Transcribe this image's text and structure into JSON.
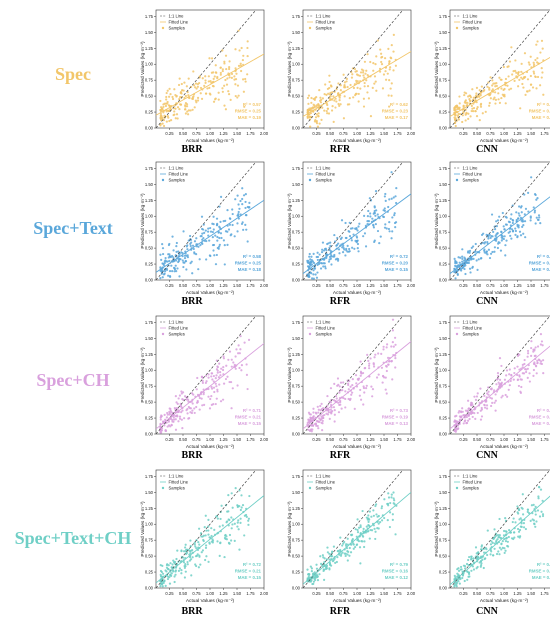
{
  "figure": {
    "rows": [
      {
        "label": "Spec",
        "color": "#f2c66a"
      },
      {
        "label": "Spec+Text",
        "color": "#5aa7da"
      },
      {
        "label": "Spec+CH",
        "color": "#d9a0dd"
      },
      {
        "label": "Spec+Text+CH",
        "color": "#6fcfc6"
      }
    ],
    "models": [
      "BRR",
      "RFR",
      "CNN"
    ]
  },
  "chart_data": [
    {
      "type": "scatter",
      "row": 0,
      "col": 0,
      "model": "BRR",
      "feature_set": "Spec",
      "xlabel": "Actual Values (kg·m⁻²)",
      "ylabel": "Predicted Values (kg·m⁻²)",
      "xlim": [
        0,
        2.0
      ],
      "ylim": [
        0,
        1.85
      ],
      "xticks": [
        "0.25",
        "0.50",
        "0.75",
        "1.00",
        "1.25",
        "1.50",
        "1.75",
        "2.00"
      ],
      "yticks": [
        "0.00",
        "0.25",
        "0.50",
        "0.75",
        "1.00",
        "1.25",
        "1.50",
        "1.75"
      ],
      "legend": [
        "1:1 Line",
        "Fitted Line",
        "Samples"
      ],
      "fit_line": [
        [
          0,
          0.2
        ],
        [
          2.0,
          1.16
        ]
      ],
      "metrics": [
        "R² = 0.57",
        "RMSE = 0.25",
        "MAE = 0.19"
      ],
      "n_points": 240
    },
    {
      "type": "scatter",
      "row": 0,
      "col": 1,
      "model": "RFR",
      "feature_set": "Spec",
      "xlabel": "Actual Values (kg·m⁻²)",
      "ylabel": "Predicted Values (kg·m⁻²)",
      "xlim": [
        0,
        2.0
      ],
      "ylim": [
        0,
        1.85
      ],
      "xticks": [
        "0.25",
        "0.50",
        "0.75",
        "1.00",
        "1.25",
        "1.50",
        "1.75",
        "2.00"
      ],
      "yticks": [
        "0.00",
        "0.25",
        "0.50",
        "0.75",
        "1.00",
        "1.25",
        "1.50",
        "1.75"
      ],
      "legend": [
        "1:1 Line",
        "Fitted Line",
        "Samples"
      ],
      "fit_line": [
        [
          0,
          0.18
        ],
        [
          2.0,
          1.2
        ]
      ],
      "metrics": [
        "R² = 0.62",
        "RMSE = 0.23",
        "MAE = 0.17"
      ],
      "n_points": 240
    },
    {
      "type": "scatter",
      "row": 0,
      "col": 2,
      "model": "CNN",
      "feature_set": "Spec",
      "xlabel": "Actual Values (kg·m⁻²)",
      "ylabel": "Predicted Values (kg·m⁻²)",
      "xlim": [
        0,
        2.0
      ],
      "ylim": [
        0,
        1.85
      ],
      "xticks": [
        "0.25",
        "0.50",
        "0.75",
        "1.00",
        "1.25",
        "1.50",
        "1.75",
        "2.00"
      ],
      "yticks": [
        "0.00",
        "0.25",
        "0.50",
        "0.75",
        "1.00",
        "1.25",
        "1.50",
        "1.75"
      ],
      "legend": [
        "1:1 Line",
        "Fitted Line",
        "Samples"
      ],
      "fit_line": [
        [
          0,
          0.18
        ],
        [
          2.0,
          1.18
        ]
      ],
      "metrics": [
        "R² = 0.57",
        "RMSE = 0.22",
        "MAE = 0.15"
      ],
      "n_points": 240
    },
    {
      "type": "scatter",
      "row": 1,
      "col": 0,
      "model": "BRR",
      "feature_set": "Spec+Text",
      "xlabel": "Actual Values (kg·m⁻²)",
      "ylabel": "Predicted Values (kg·m⁻²)",
      "xlim": [
        0,
        2.0
      ],
      "ylim": [
        0,
        1.85
      ],
      "xticks": [
        "0.25",
        "0.50",
        "0.75",
        "1.00",
        "1.25",
        "1.50",
        "1.75",
        "2.00"
      ],
      "yticks": [
        "0.00",
        "0.25",
        "0.50",
        "0.75",
        "1.00",
        "1.25",
        "1.50",
        "1.75"
      ],
      "legend": [
        "1:1 Line",
        "Fitted Line",
        "Samples"
      ],
      "fit_line": [
        [
          0,
          0.12
        ],
        [
          2.0,
          1.25
        ]
      ],
      "metrics": [
        "R² = 0.58",
        "RMSE = 0.25",
        "MAE = 0.18"
      ],
      "n_points": 240
    },
    {
      "type": "scatter",
      "row": 1,
      "col": 1,
      "model": "RFR",
      "feature_set": "Spec+Text",
      "xlabel": "Actual Values (kg·m⁻²)",
      "ylabel": "Predicted Values (kg·m⁻²)",
      "xlim": [
        0,
        2.0
      ],
      "ylim": [
        0,
        1.85
      ],
      "xticks": [
        "0.25",
        "0.50",
        "0.75",
        "1.00",
        "1.25",
        "1.50",
        "1.75",
        "2.00"
      ],
      "yticks": [
        "0.00",
        "0.25",
        "0.50",
        "0.75",
        "1.00",
        "1.25",
        "1.50",
        "1.75"
      ],
      "legend": [
        "1:1 Line",
        "Fitted Line",
        "Samples"
      ],
      "fit_line": [
        [
          0,
          0.1
        ],
        [
          2.0,
          1.35
        ]
      ],
      "metrics": [
        "R² = 0.72",
        "RMSE = 0.20",
        "MAE = 0.15"
      ],
      "n_points": 240
    },
    {
      "type": "scatter",
      "row": 1,
      "col": 2,
      "model": "CNN",
      "feature_set": "Spec+Text",
      "xlabel": "Actual Values (kg·m⁻²)",
      "ylabel": "Predicted Values (kg·m⁻²)",
      "xlim": [
        0,
        2.0
      ],
      "ylim": [
        0,
        1.85
      ],
      "xticks": [
        "0.25",
        "0.50",
        "0.75",
        "1.00",
        "1.25",
        "1.50",
        "1.75",
        "2.00"
      ],
      "yticks": [
        "0.00",
        "0.25",
        "0.50",
        "0.75",
        "1.00",
        "1.25",
        "1.50",
        "1.75"
      ],
      "legend": [
        "1:1 Line",
        "Fitted Line",
        "Samples"
      ],
      "fit_line": [
        [
          0,
          0.1
        ],
        [
          2.0,
          1.4
        ]
      ],
      "metrics": [
        "R² = 0.74",
        "RMSE = 0.18",
        "MAE = 0.13"
      ],
      "n_points": 240
    },
    {
      "type": "scatter",
      "row": 2,
      "col": 0,
      "model": "BRR",
      "feature_set": "Spec+CH",
      "xlabel": "Actual Values (kg·m⁻²)",
      "ylabel": "Predicted Values (kg·m⁻²)",
      "xlim": [
        0,
        2.0
      ],
      "ylim": [
        0,
        1.85
      ],
      "xticks": [
        "0.25",
        "0.50",
        "0.75",
        "1.00",
        "1.25",
        "1.50",
        "1.75",
        "2.00"
      ],
      "yticks": [
        "0.00",
        "0.25",
        "0.50",
        "0.75",
        "1.00",
        "1.25",
        "1.50",
        "1.75"
      ],
      "legend": [
        "1:1 Line",
        "Fitted Line",
        "Samples"
      ],
      "fit_line": [
        [
          0,
          0.08
        ],
        [
          2.0,
          1.42
        ]
      ],
      "metrics": [
        "R² = 0.71",
        "RMSE = 0.21",
        "MAE = 0.15"
      ],
      "n_points": 240
    },
    {
      "type": "scatter",
      "row": 2,
      "col": 1,
      "model": "RFR",
      "feature_set": "Spec+CH",
      "xlabel": "Actual Values (kg·m⁻²)",
      "ylabel": "Predicted Values (kg·m⁻²)",
      "xlim": [
        0,
        2.0
      ],
      "ylim": [
        0,
        1.85
      ],
      "xticks": [
        "0.25",
        "0.50",
        "0.75",
        "1.00",
        "1.25",
        "1.50",
        "1.75",
        "2.00"
      ],
      "yticks": [
        "0.00",
        "0.25",
        "0.50",
        "0.75",
        "1.00",
        "1.25",
        "1.50",
        "1.75"
      ],
      "legend": [
        "1:1 Line",
        "Fitted Line",
        "Samples"
      ],
      "fit_line": [
        [
          0,
          0.08
        ],
        [
          2.0,
          1.45
        ]
      ],
      "metrics": [
        "R² = 0.73",
        "RMSE = 0.19",
        "MAE = 0.13"
      ],
      "n_points": 240
    },
    {
      "type": "scatter",
      "row": 2,
      "col": 2,
      "model": "CNN",
      "feature_set": "Spec+CH",
      "xlabel": "Actual Values (kg·m⁻²)",
      "ylabel": "Predicted Values (kg·m⁻²)",
      "xlim": [
        0,
        2.0
      ],
      "ylim": [
        0,
        1.85
      ],
      "xticks": [
        "0.25",
        "0.50",
        "0.75",
        "1.00",
        "1.25",
        "1.50",
        "1.75",
        "2.00"
      ],
      "yticks": [
        "0.00",
        "0.25",
        "0.50",
        "0.75",
        "1.00",
        "1.25",
        "1.50",
        "1.75"
      ],
      "legend": [
        "1:1 Line",
        "Fitted Line",
        "Samples"
      ],
      "fit_line": [
        [
          0,
          0.08
        ],
        [
          2.0,
          1.48
        ]
      ],
      "metrics": [
        "R² = 0.78",
        "RMSE = 0.16",
        "MAE = 0.12"
      ],
      "n_points": 240
    },
    {
      "type": "scatter",
      "row": 3,
      "col": 0,
      "model": "BRR",
      "feature_set": "Spec+Text+CH",
      "xlabel": "Actual Values (kg·m⁻²)",
      "ylabel": "Predicted Values (kg·m⁻²)",
      "xlim": [
        0,
        2.0
      ],
      "ylim": [
        0,
        1.85
      ],
      "xticks": [
        "0.25",
        "0.50",
        "0.75",
        "1.00",
        "1.25",
        "1.50",
        "1.75",
        "2.00"
      ],
      "yticks": [
        "0.00",
        "0.25",
        "0.50",
        "0.75",
        "1.00",
        "1.25",
        "1.50",
        "1.75"
      ],
      "legend": [
        "1:1 Line",
        "Fitted Line",
        "Samples"
      ],
      "fit_line": [
        [
          0,
          0.08
        ],
        [
          2.0,
          1.45
        ]
      ],
      "metrics": [
        "R² = 0.72",
        "RMSE = 0.21",
        "MAE = 0.15"
      ],
      "n_points": 240
    },
    {
      "type": "scatter",
      "row": 3,
      "col": 1,
      "model": "RFR",
      "feature_set": "Spec+Text+CH",
      "xlabel": "Actual Values (kg·m⁻²)",
      "ylabel": "Predicted Values (kg·m⁻²)",
      "xlim": [
        0,
        2.0
      ],
      "ylim": [
        0,
        1.85
      ],
      "xticks": [
        "0.25",
        "0.50",
        "0.75",
        "1.00",
        "1.25",
        "1.50",
        "1.75",
        "2.00"
      ],
      "yticks": [
        "0.00",
        "0.25",
        "0.50",
        "0.75",
        "1.00",
        "1.25",
        "1.50",
        "1.75"
      ],
      "legend": [
        "1:1 Line",
        "Fitted Line",
        "Samples"
      ],
      "fit_line": [
        [
          0,
          0.06
        ],
        [
          2.0,
          1.5
        ]
      ],
      "metrics": [
        "R² = 0.79",
        "RMSE = 0.16",
        "MAE = 0.12"
      ],
      "n_points": 240
    },
    {
      "type": "scatter",
      "row": 3,
      "col": 2,
      "model": "CNN",
      "feature_set": "Spec+Text+CH",
      "xlabel": "Actual Values (kg·m⁻²)",
      "ylabel": "Predicted Values (kg·m⁻²)",
      "xlim": [
        0,
        2.0
      ],
      "ylim": [
        0,
        1.85
      ],
      "xticks": [
        "0.25",
        "0.50",
        "0.75",
        "1.00",
        "1.25",
        "1.50",
        "1.75",
        "2.00"
      ],
      "yticks": [
        "0.00",
        "0.25",
        "0.50",
        "0.75",
        "1.00",
        "1.25",
        "1.50",
        "1.75"
      ],
      "legend": [
        "1:1 Line",
        "Fitted Line",
        "Samples"
      ],
      "fit_line": [
        [
          0,
          0.05
        ],
        [
          2.0,
          1.55
        ]
      ],
      "metrics": [
        "R² = 0.80",
        "RMSE = 0.17",
        "MAE = 0.11"
      ],
      "n_points": 240
    }
  ]
}
